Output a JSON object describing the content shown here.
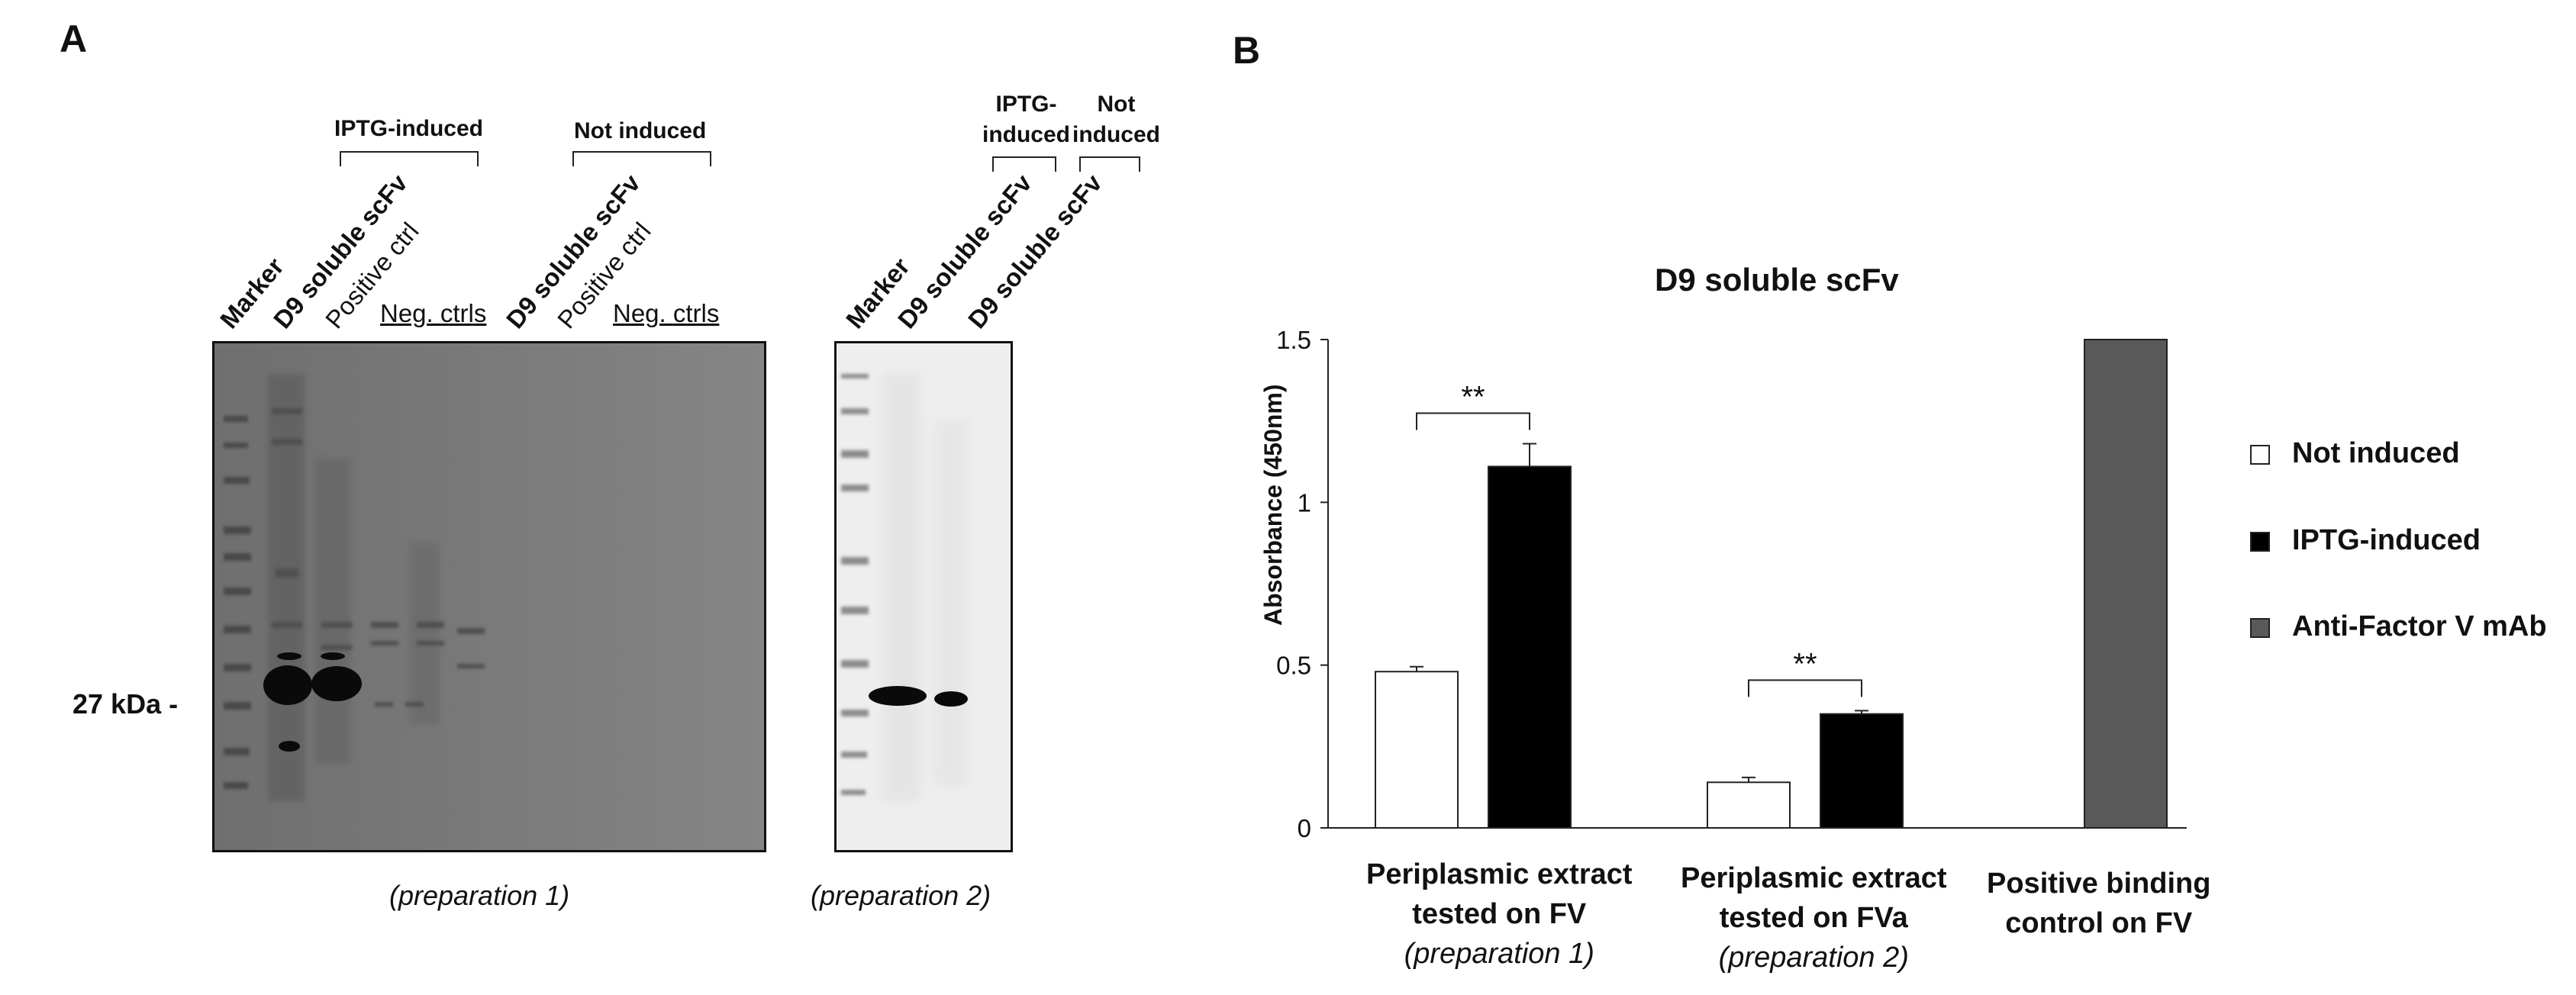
{
  "panel_a": {
    "letter": "A",
    "marker_label": "27 kDa -",
    "blot1": {
      "lanes": [
        {
          "text": "Marker",
          "style": "b"
        },
        {
          "text": "D9 soluble scFv",
          "style": "b"
        },
        {
          "text": "Positive ctrl",
          "style": ""
        },
        {
          "text": "Neg. ctrls",
          "style": "u"
        },
        {
          "text": "D9 soluble scFv",
          "style": "b"
        },
        {
          "text": "Positive ctrl",
          "style": ""
        },
        {
          "text": "Neg. ctrls",
          "style": "u"
        }
      ],
      "groups": [
        "IPTG-induced",
        "Not induced"
      ],
      "caption": "(preparation 1)"
    },
    "blot2": {
      "lanes": [
        "Marker",
        "D9 soluble scFv",
        "D9 soluble scFv"
      ],
      "groups": [
        {
          "line1": "IPTG-",
          "line2": "induced"
        },
        {
          "line1": "Not",
          "line2": "induced"
        }
      ],
      "caption": "(preparation 2)"
    }
  },
  "panel_b": {
    "letter": "B"
  },
  "chart_data": {
    "type": "bar",
    "title": "D9 soluble scFv",
    "ylabel": "Absorbance (450nm)",
    "xlabel": "",
    "ylim": [
      0,
      1.5
    ],
    "yticks": [
      "0",
      "0.5",
      "1",
      "1.5"
    ],
    "ytick_values": [
      0,
      0.5,
      1,
      1.5
    ],
    "categories": [
      {
        "line1": "Periplasmic extract",
        "line2": "tested on FV",
        "line3": "(preparation 1)"
      },
      {
        "line1": "Periplasmic extract",
        "line2": "tested on FVa",
        "line3": "(preparation 2)"
      },
      {
        "line1": "Positive binding",
        "line2": "control on FV",
        "line3": ""
      }
    ],
    "series": [
      {
        "name": "Not induced",
        "color": "#ffffff",
        "values": [
          0.48,
          0.14,
          null
        ],
        "errors": [
          0.015,
          0.015,
          null
        ]
      },
      {
        "name": "IPTG-induced",
        "color": "#000000",
        "values": [
          1.11,
          0.35,
          null
        ],
        "errors": [
          0.07,
          0.01,
          null
        ]
      },
      {
        "name": "Anti-Factor V mAb",
        "color": "#595959",
        "values": [
          null,
          null,
          1.5
        ],
        "errors": [
          null,
          null,
          null
        ]
      }
    ],
    "significance": [
      {
        "category": 0,
        "label": "**"
      },
      {
        "category": 1,
        "label": "**"
      }
    ],
    "legend_position": "right"
  }
}
